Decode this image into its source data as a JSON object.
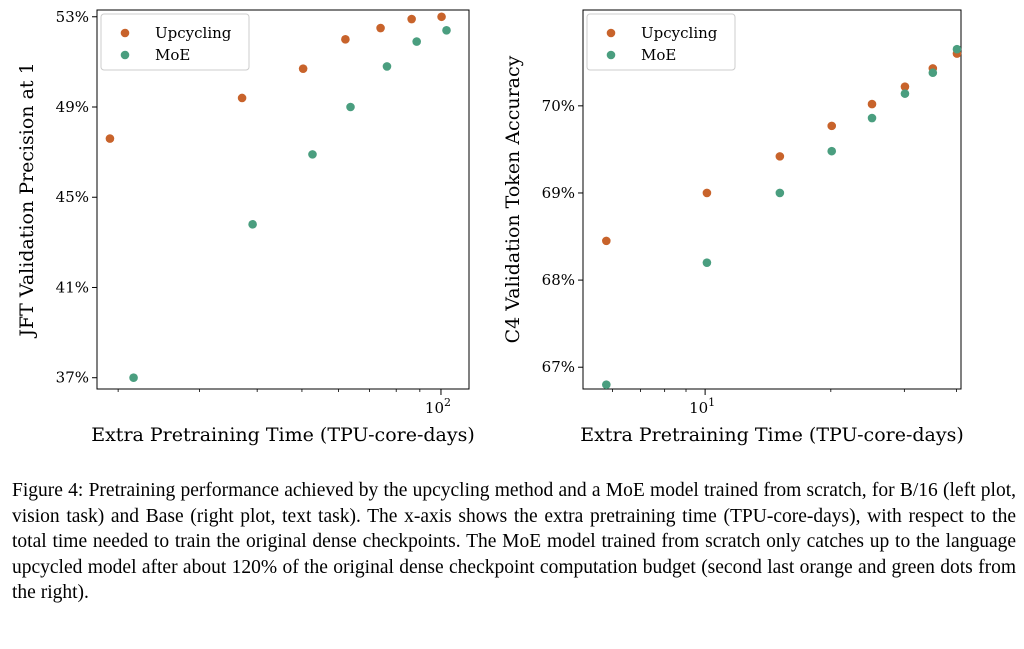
{
  "colors": {
    "upcycling": "#c8632b",
    "moe": "#4a9e7f"
  },
  "chart_data": [
    {
      "type": "scatter",
      "xscale": "log",
      "xlabel": "Extra Pretraining Time (TPU-core-days)",
      "ylabel": "JFT Validation Precision at 1",
      "xlim": [
        18,
        115
      ],
      "ylim": [
        36.5,
        53.3
      ],
      "xticks": [
        {
          "value": 100,
          "base": "10",
          "exp": "2"
        }
      ],
      "yticks": [
        {
          "value": 37,
          "label": "37%"
        },
        {
          "value": 41,
          "label": "41%"
        },
        {
          "value": 45,
          "label": "45%"
        },
        {
          "value": 49,
          "label": "49%"
        },
        {
          "value": 53,
          "label": "53%"
        }
      ],
      "legend": "top-left",
      "series": [
        {
          "name": "Upcycling",
          "color_key": "upcycling",
          "x": [
            19.2,
            37.1,
            50.3,
            62.1,
            74.0,
            86.4,
            100.3
          ],
          "y": [
            47.6,
            49.4,
            50.7,
            52.0,
            52.5,
            52.9,
            53.0
          ]
        },
        {
          "name": "MoE",
          "color_key": "moe",
          "x": [
            21.6,
            39.1,
            52.7,
            63.7,
            76.4,
            88.6,
            102.8
          ],
          "y": [
            37.0,
            43.8,
            46.9,
            49.0,
            50.8,
            51.9,
            52.4
          ]
        }
      ]
    },
    {
      "type": "scatter",
      "xscale": "log",
      "xlabel": "Extra Pretraining Time (TPU-core-days)",
      "ylabel": "C4 Validation Token Accuracy",
      "xlim": [
        5.1,
        41
      ],
      "ylim": [
        66.75,
        71.1
      ],
      "xticks": [
        {
          "value": 10,
          "base": "10",
          "exp": "1"
        }
      ],
      "yticks": [
        {
          "value": 67,
          "label": "67%"
        },
        {
          "value": 68,
          "label": "68%"
        },
        {
          "value": 69,
          "label": "69%"
        },
        {
          "value": 70,
          "label": "70%"
        }
      ],
      "legend": "top-left",
      "series": [
        {
          "name": "Upcycling",
          "color_key": "upcycling",
          "x": [
            5.8,
            10.1,
            15.1,
            20.1,
            25.1,
            30.1,
            35.1,
            40.1
          ],
          "y": [
            68.45,
            69.0,
            69.42,
            69.77,
            70.02,
            70.22,
            70.43,
            70.6
          ]
        },
        {
          "name": "MoE",
          "color_key": "moe",
          "x": [
            5.8,
            10.1,
            15.1,
            20.1,
            25.1,
            30.1,
            35.1,
            40.1
          ],
          "y": [
            66.8,
            68.2,
            69.0,
            69.48,
            69.86,
            70.14,
            70.38,
            70.65
          ]
        }
      ]
    }
  ],
  "caption": "Figure 4: Pretraining performance achieved by the upcycling method and a MoE model trained from scratch, for B/16 (left plot, vision task) and Base (right plot, text task). The x-axis shows the extra pretraining time (TPU-core-days), with respect to the total time needed to train the original dense checkpoints. The MoE model trained from scratch only catches up to the language upcycled model after about 120% of the original dense checkpoint computation budget (second last orange and green dots from the right)."
}
